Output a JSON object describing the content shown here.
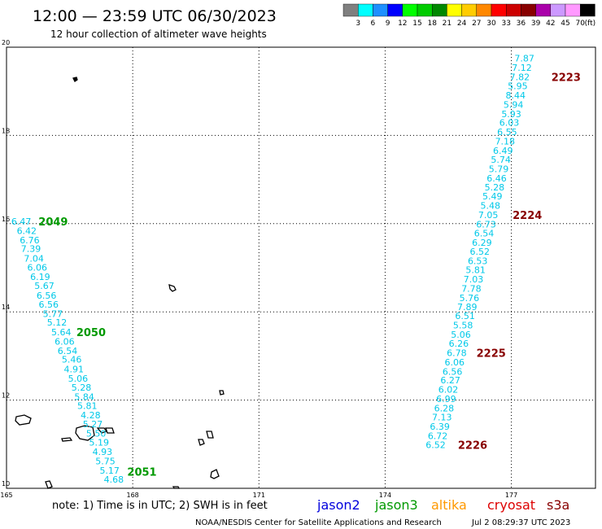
{
  "header": {
    "title": "12:00 — 23:59 UTC 06/30/2023",
    "subtitle": "12 hour collection of altimeter wave heights"
  },
  "colorbar": {
    "colors": [
      "#808080",
      "#00ffff",
      "#1e90ff",
      "#0000ff",
      "#00ff00",
      "#00cc00",
      "#008800",
      "#ffff00",
      "#ffcc00",
      "#ff8800",
      "#ff0000",
      "#cc0000",
      "#880000",
      "#aa00aa",
      "#cc99ff",
      "#ff99ff",
      "#000000"
    ],
    "labels": [
      "3",
      "6",
      "9",
      "12",
      "15",
      "18",
      "21",
      "24",
      "27",
      "30",
      "33",
      "36",
      "39",
      "42",
      "45",
      "70"
    ],
    "unit": "(ft)"
  },
  "footer": {
    "note": "note: 1) Time is in UTC; 2) SWH is in feet",
    "credit": "NOAA/NESDIS Center for Satellite Applications and Research",
    "timestamp": "Jul 2 08:29:37 UTC 2023",
    "legend": [
      {
        "label": "jason2",
        "color": "#0000dd"
      },
      {
        "label": "jason3",
        "color": "#009900"
      },
      {
        "label": "altika",
        "color": "#ff9900"
      },
      {
        "label": "cryosat",
        "color": "#dd0000"
      },
      {
        "label": "s3a",
        "color": "#880000"
      }
    ]
  },
  "chart_data": {
    "type": "scatter",
    "xlim": [
      165,
      179
    ],
    "ylim": [
      10,
      20
    ],
    "x_ticks": [
      165,
      168,
      171,
      174,
      177
    ],
    "y_ticks": [
      10,
      12,
      14,
      16,
      18,
      20
    ],
    "x_tick_labels": [
      "165",
      "168",
      "171",
      "174",
      "177"
    ],
    "y_tick_labels": [
      "10",
      "12",
      "14",
      "16",
      "18",
      "20"
    ],
    "grid": true,
    "text_color": "#00c8e8",
    "tracks": [
      {
        "satellite": "jason3",
        "color": "#009900",
        "points": [
          {
            "x": 165.35,
            "y": 16.05,
            "v": "6.47"
          },
          {
            "x": 165.48,
            "y": 15.84,
            "v": "6.42"
          },
          {
            "x": 165.55,
            "y": 15.63,
            "v": "6.76"
          },
          {
            "x": 165.58,
            "y": 15.43,
            "v": "7.39"
          },
          {
            "x": 165.65,
            "y": 15.21,
            "v": "7.04"
          },
          {
            "x": 165.73,
            "y": 15.01,
            "v": "6.06"
          },
          {
            "x": 165.8,
            "y": 14.8,
            "v": "6.19"
          },
          {
            "x": 165.9,
            "y": 14.59,
            "v": "5.67"
          },
          {
            "x": 165.95,
            "y": 14.37,
            "v": "6.56"
          },
          {
            "x": 166.0,
            "y": 14.17,
            "v": "6.56"
          },
          {
            "x": 166.1,
            "y": 13.96,
            "v": "5.77"
          },
          {
            "x": 166.2,
            "y": 13.76,
            "v": "5.12"
          },
          {
            "x": 166.3,
            "y": 13.54,
            "v": "5.64"
          },
          {
            "x": 166.38,
            "y": 13.33,
            "v": "6.06"
          },
          {
            "x": 166.45,
            "y": 13.12,
            "v": "6.54"
          },
          {
            "x": 166.55,
            "y": 12.92,
            "v": "5.46"
          },
          {
            "x": 166.6,
            "y": 12.7,
            "v": "4.91"
          },
          {
            "x": 166.7,
            "y": 12.49,
            "v": "5.06"
          },
          {
            "x": 166.78,
            "y": 12.29,
            "v": "5.28"
          },
          {
            "x": 166.85,
            "y": 12.08,
            "v": "5.84"
          },
          {
            "x": 166.92,
            "y": 11.87,
            "v": "5.81"
          },
          {
            "x": 167.0,
            "y": 11.66,
            "v": "4.28"
          },
          {
            "x": 167.05,
            "y": 11.46,
            "v": "5.27"
          },
          {
            "x": 167.13,
            "y": 11.25,
            "v": "5.50"
          },
          {
            "x": 167.2,
            "y": 11.04,
            "v": "5.19"
          },
          {
            "x": 167.28,
            "y": 10.83,
            "v": "4.93"
          },
          {
            "x": 167.35,
            "y": 10.62,
            "v": "5.75"
          },
          {
            "x": 167.45,
            "y": 10.41,
            "v": "5.17"
          },
          {
            "x": 167.55,
            "y": 10.2,
            "v": "4.68"
          }
        ],
        "labels": [
          {
            "x": 165.76,
            "y": 16.05,
            "text": "2049"
          },
          {
            "x": 166.66,
            "y": 13.54,
            "text": "2050"
          },
          {
            "x": 167.87,
            "y": 10.38,
            "text": "2051"
          }
        ]
      },
      {
        "satellite": "s3a",
        "color": "#880000",
        "points": [
          {
            "x": 177.31,
            "y": 19.75,
            "v": "7.87"
          },
          {
            "x": 177.25,
            "y": 19.54,
            "v": "7.12"
          },
          {
            "x": 177.2,
            "y": 19.33,
            "v": "7.82"
          },
          {
            "x": 177.15,
            "y": 19.12,
            "v": "5.95"
          },
          {
            "x": 177.1,
            "y": 18.91,
            "v": "8.44"
          },
          {
            "x": 177.05,
            "y": 18.7,
            "v": "5.94"
          },
          {
            "x": 177.0,
            "y": 18.49,
            "v": "5.93"
          },
          {
            "x": 176.95,
            "y": 18.29,
            "v": "6.03"
          },
          {
            "x": 176.9,
            "y": 18.08,
            "v": "6.55"
          },
          {
            "x": 176.85,
            "y": 17.87,
            "v": "7.18"
          },
          {
            "x": 176.8,
            "y": 17.66,
            "v": "6.49"
          },
          {
            "x": 176.75,
            "y": 17.45,
            "v": "5.74"
          },
          {
            "x": 176.7,
            "y": 17.24,
            "v": "5.79"
          },
          {
            "x": 176.65,
            "y": 17.03,
            "v": "6.46"
          },
          {
            "x": 176.6,
            "y": 16.83,
            "v": "5.28"
          },
          {
            "x": 176.55,
            "y": 16.62,
            "v": "5.49"
          },
          {
            "x": 176.5,
            "y": 16.41,
            "v": "5.48"
          },
          {
            "x": 176.45,
            "y": 16.2,
            "v": "7.05"
          },
          {
            "x": 176.4,
            "y": 15.99,
            "v": "6.73"
          },
          {
            "x": 176.35,
            "y": 15.78,
            "v": "6.54"
          },
          {
            "x": 176.3,
            "y": 15.57,
            "v": "6.29"
          },
          {
            "x": 176.25,
            "y": 15.37,
            "v": "6.52"
          },
          {
            "x": 176.2,
            "y": 15.16,
            "v": "6.53"
          },
          {
            "x": 176.15,
            "y": 14.95,
            "v": "5.81"
          },
          {
            "x": 176.1,
            "y": 14.74,
            "v": "7.03"
          },
          {
            "x": 176.05,
            "y": 14.53,
            "v": "7.78"
          },
          {
            "x": 176.0,
            "y": 14.32,
            "v": "5.76"
          },
          {
            "x": 175.95,
            "y": 14.11,
            "v": "7.89"
          },
          {
            "x": 175.9,
            "y": 13.91,
            "v": "6.51"
          },
          {
            "x": 175.85,
            "y": 13.7,
            "v": "5.58"
          },
          {
            "x": 175.8,
            "y": 13.49,
            "v": "5.06"
          },
          {
            "x": 175.75,
            "y": 13.28,
            "v": "6.26"
          },
          {
            "x": 175.7,
            "y": 13.07,
            "v": "6.78"
          },
          {
            "x": 175.65,
            "y": 12.86,
            "v": "6.06"
          },
          {
            "x": 175.6,
            "y": 12.65,
            "v": "6.56"
          },
          {
            "x": 175.55,
            "y": 12.45,
            "v": "6.27"
          },
          {
            "x": 175.5,
            "y": 12.24,
            "v": "6.02"
          },
          {
            "x": 175.45,
            "y": 12.03,
            "v": "6.99"
          },
          {
            "x": 175.4,
            "y": 11.82,
            "v": "6.28"
          },
          {
            "x": 175.35,
            "y": 11.61,
            "v": "7.13"
          },
          {
            "x": 175.3,
            "y": 11.4,
            "v": "6.39"
          },
          {
            "x": 175.25,
            "y": 11.19,
            "v": "6.72"
          },
          {
            "x": 175.2,
            "y": 10.99,
            "v": "6.52"
          }
        ],
        "labels": [
          {
            "x": 177.95,
            "y": 19.33,
            "text": "2223"
          },
          {
            "x": 177.03,
            "y": 16.2,
            "text": "2224"
          },
          {
            "x": 176.17,
            "y": 13.07,
            "text": "2225"
          },
          {
            "x": 175.73,
            "y": 10.99,
            "text": "2226"
          }
        ]
      }
    ]
  }
}
